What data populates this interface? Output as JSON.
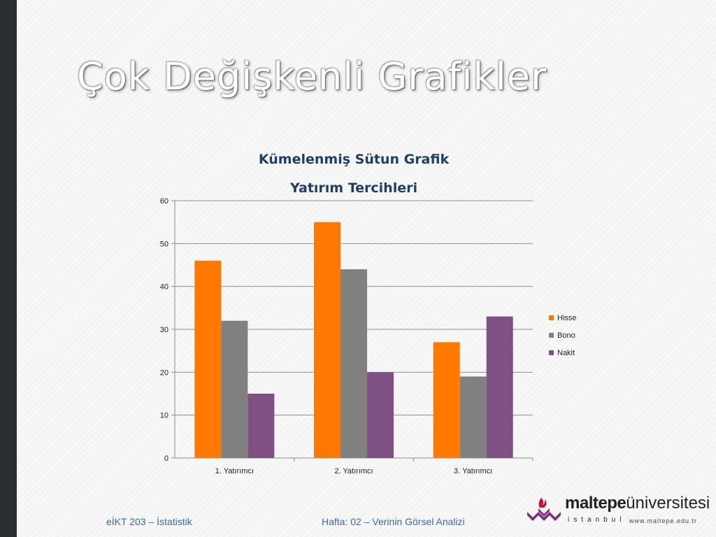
{
  "slide": {
    "title": "Çok Değişkenli Grafikler",
    "footer_left": "eİKT 203 – İstatistik",
    "footer_center": "Hafta: 02 – Verinin Görsel Analizi"
  },
  "logo": {
    "brand": "maltepe",
    "university": "üniversitesi",
    "city": "istanbul",
    "url": "www.maltepe.edu.tr"
  },
  "chart_data": {
    "type": "bar",
    "title": "Kümelenmiş Sütun Grafik",
    "subtitle": "Yatırım Tercihleri",
    "categories": [
      "1. Yatırımcı",
      "2. Yatırımcı",
      "3. Yatırımcı"
    ],
    "series": [
      {
        "name": "Hisse",
        "values": [
          46,
          55,
          27
        ],
        "color": "#ff7800"
      },
      {
        "name": "Bono",
        "values": [
          32,
          44,
          19
        ],
        "color": "#808080"
      },
      {
        "name": "Nakit",
        "values": [
          15,
          20,
          33
        ],
        "color": "#7f5083"
      }
    ],
    "ylim": [
      0,
      60
    ],
    "yticks": [
      0,
      10,
      20,
      30,
      40,
      50,
      60
    ],
    "grid": true,
    "legend": "right",
    "xlabel": "",
    "ylabel": ""
  }
}
